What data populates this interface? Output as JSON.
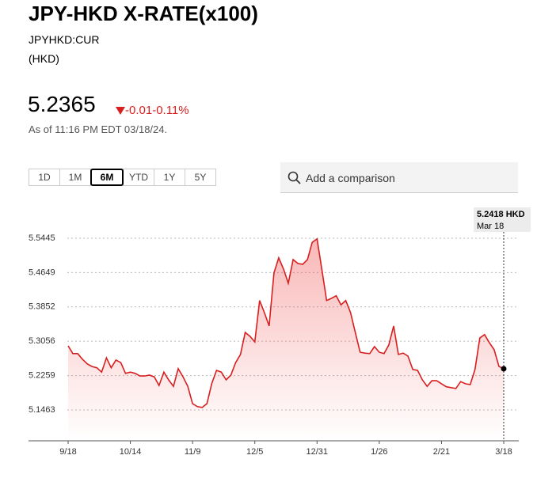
{
  "header": {
    "title": "JPY-HKD X-RATE(x100)",
    "symbol": "JPYHKD:CUR",
    "currency": "(HKD)",
    "price": 5.2365,
    "change": -0.01,
    "change_pct": "-0.11%",
    "timestamp": "As of 11:16 PM EDT 03/18/24.",
    "ranges": [
      "1D",
      "1M",
      "6M",
      "YTD",
      "1Y",
      "5Y"
    ],
    "selected_range": 2,
    "search_placeholder": "Add a comparison"
  },
  "chart_data": {
    "type": "area-line",
    "color": "#d81f1f",
    "categories": [
      "9/18",
      null,
      null,
      null,
      null,
      null,
      null,
      null,
      null,
      null,
      null,
      null,
      null,
      "10/14",
      null,
      null,
      null,
      null,
      null,
      null,
      null,
      null,
      null,
      null,
      null,
      null,
      "11/9",
      null,
      null,
      null,
      null,
      null,
      null,
      null,
      null,
      null,
      null,
      null,
      null,
      "12/5",
      null,
      null,
      null,
      null,
      null,
      null,
      null,
      null,
      null,
      null,
      null,
      null,
      "12/31",
      null,
      null,
      null,
      null,
      null,
      null,
      null,
      null,
      null,
      null,
      null,
      null,
      "1/26",
      null,
      null,
      null,
      null,
      null,
      null,
      null,
      null,
      null,
      null,
      null,
      null,
      "2/21",
      null,
      null,
      null,
      null,
      null,
      null,
      null,
      null,
      null,
      null,
      null,
      null,
      "3/18"
    ],
    "values": [
      5.295,
      5.277,
      5.277,
      5.264,
      5.253,
      5.247,
      5.244,
      5.234,
      5.267,
      5.244,
      5.262,
      5.256,
      5.231,
      5.234,
      5.231,
      5.225,
      5.225,
      5.227,
      5.223,
      5.203,
      5.234,
      5.216,
      5.201,
      5.242,
      5.223,
      5.201,
      5.161,
      5.154,
      5.152,
      5.161,
      5.207,
      5.238,
      5.234,
      5.216,
      5.227,
      5.256,
      5.275,
      5.326,
      5.317,
      5.304,
      5.4,
      5.372,
      5.341,
      5.464,
      5.499,
      5.473,
      5.44,
      5.495,
      5.486,
      5.484,
      5.495,
      5.535,
      5.543,
      5.473,
      5.4,
      5.405,
      5.411,
      5.39,
      5.4,
      5.372,
      5.326,
      5.28,
      5.278,
      5.277,
      5.293,
      5.28,
      5.277,
      5.297,
      5.341,
      5.275,
      5.278,
      5.271,
      5.24,
      5.238,
      5.216,
      5.201,
      5.214,
      5.214,
      5.207,
      5.2,
      5.198,
      5.196,
      5.212,
      5.207,
      5.205,
      5.24,
      5.313,
      5.321,
      5.302,
      5.286,
      5.247,
      5.2418
    ],
    "ylim": [
      5.0747,
      5.6014
    ],
    "yticks": [
      5.1463,
      5.2259,
      5.3056,
      5.3852,
      5.4649,
      5.5445
    ],
    "grid": true,
    "annotation": "5.2418 HKD",
    "annotation_date": "Mar 18"
  }
}
